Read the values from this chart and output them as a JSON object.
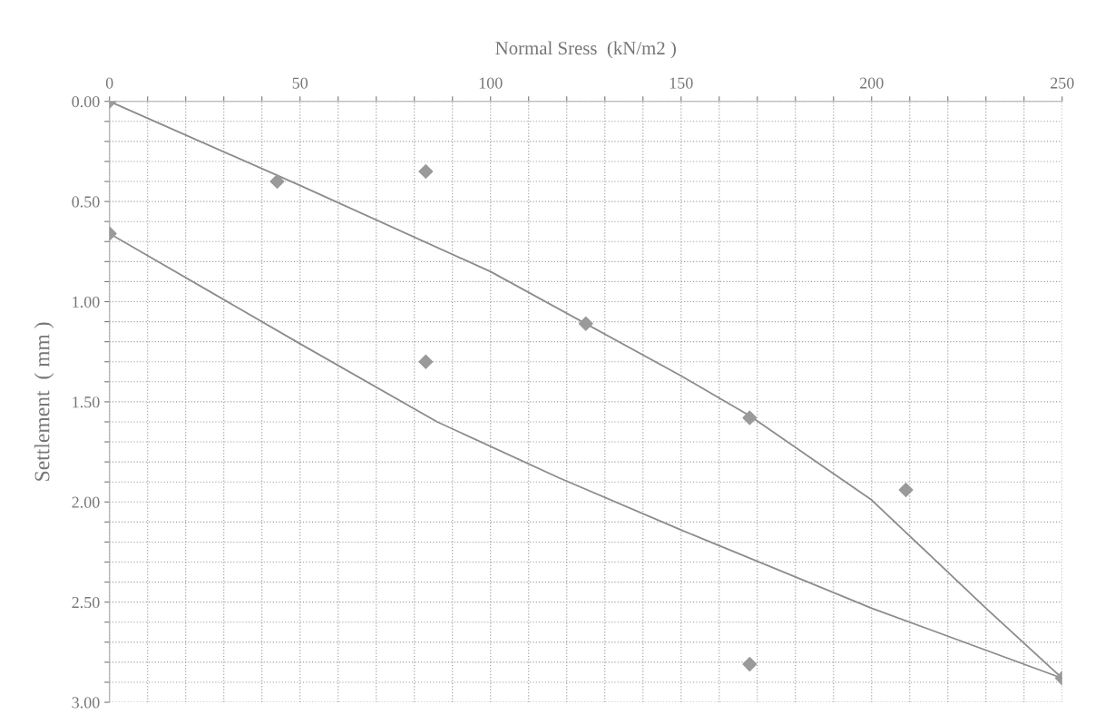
{
  "chart_data": {
    "type": "scatter",
    "xlabel": "Normal Sress  (kN/m2 )",
    "ylabel": "Settlement  ( mm )",
    "xlim": [
      0,
      250
    ],
    "ylim": [
      3,
      0
    ],
    "xticks": [
      0,
      {
        "value": 10,
        "label": null
      },
      {
        "value": 20,
        "label": null
      },
      {
        "value": 30,
        "label": null
      },
      {
        "value": 40,
        "label": null
      },
      50,
      {
        "value": 60,
        "label": null
      },
      {
        "value": 70,
        "label": null
      },
      {
        "value": 80,
        "label": null
      },
      {
        "value": 90,
        "label": null
      },
      100,
      {
        "value": 110,
        "label": null
      },
      {
        "value": 120,
        "label": null
      },
      {
        "value": 130,
        "label": null
      },
      {
        "value": 140,
        "label": null
      },
      150,
      {
        "value": 160,
        "label": null
      },
      {
        "value": 170,
        "label": null
      },
      {
        "value": 180,
        "label": null
      },
      {
        "value": 190,
        "label": null
      },
      200,
      {
        "value": 210,
        "label": null
      },
      {
        "value": 220,
        "label": null
      },
      {
        "value": 230,
        "label": null
      },
      {
        "value": 240,
        "label": null
      },
      250
    ],
    "yticks": [
      {
        "value": 0,
        "label": "0.00"
      },
      {
        "value": 0.1,
        "label": null
      },
      {
        "value": 0.2,
        "label": null
      },
      {
        "value": 0.3,
        "label": null
      },
      {
        "value": 0.4,
        "label": null
      },
      {
        "value": 0.5,
        "label": "0.50"
      },
      {
        "value": 0.6,
        "label": null
      },
      {
        "value": 0.7,
        "label": null
      },
      {
        "value": 0.8,
        "label": null
      },
      {
        "value": 0.9,
        "label": null
      },
      {
        "value": 1,
        "label": "1.00"
      },
      {
        "value": 1.1,
        "label": null
      },
      {
        "value": 1.2,
        "label": null
      },
      {
        "value": 1.3,
        "label": null
      },
      {
        "value": 1.4,
        "label": null
      },
      {
        "value": 1.5,
        "label": "1.50"
      },
      {
        "value": 1.6,
        "label": null
      },
      {
        "value": 1.7,
        "label": null
      },
      {
        "value": 1.8,
        "label": null
      },
      {
        "value": 1.9,
        "label": null
      },
      {
        "value": 2,
        "label": "2.00"
      },
      {
        "value": 2.1,
        "label": null
      },
      {
        "value": 2.2,
        "label": null
      },
      {
        "value": 2.3,
        "label": null
      },
      {
        "value": 2.4,
        "label": null
      },
      {
        "value": 2.5,
        "label": "2.50"
      },
      {
        "value": 2.6,
        "label": null
      },
      {
        "value": 2.7,
        "label": null
      },
      {
        "value": 2.8,
        "label": null
      },
      {
        "value": 2.9,
        "label": null
      },
      {
        "value": 3,
        "label": "3.00"
      }
    ],
    "grid": true,
    "marker": "diamond",
    "series": [
      {
        "color": "#9a9a9a",
        "x": [
          0,
          44,
          83,
          0,
          83,
          125,
          168,
          209,
          168,
          250
        ],
        "values": [
          0,
          0.4,
          0.35,
          0.66,
          1.3,
          1.11,
          1.58,
          1.94,
          2.81,
          2.88
        ]
      },
      {
        "type": "line",
        "color": "#8c8c8c",
        "marker": "none",
        "x": [
          0,
          50,
          100,
          150,
          168,
          200,
          230,
          250
        ],
        "values": [
          0,
          0.42,
          0.85,
          1.37,
          1.57,
          1.99,
          2.53,
          2.88
        ]
      },
      {
        "type": "line",
        "color": "#8c8c8c",
        "marker": "none",
        "x": [
          0,
          50,
          86,
          118,
          150,
          200,
          250
        ],
        "values": [
          0.66,
          1.21,
          1.6,
          1.88,
          2.14,
          2.53,
          2.88
        ]
      }
    ]
  }
}
